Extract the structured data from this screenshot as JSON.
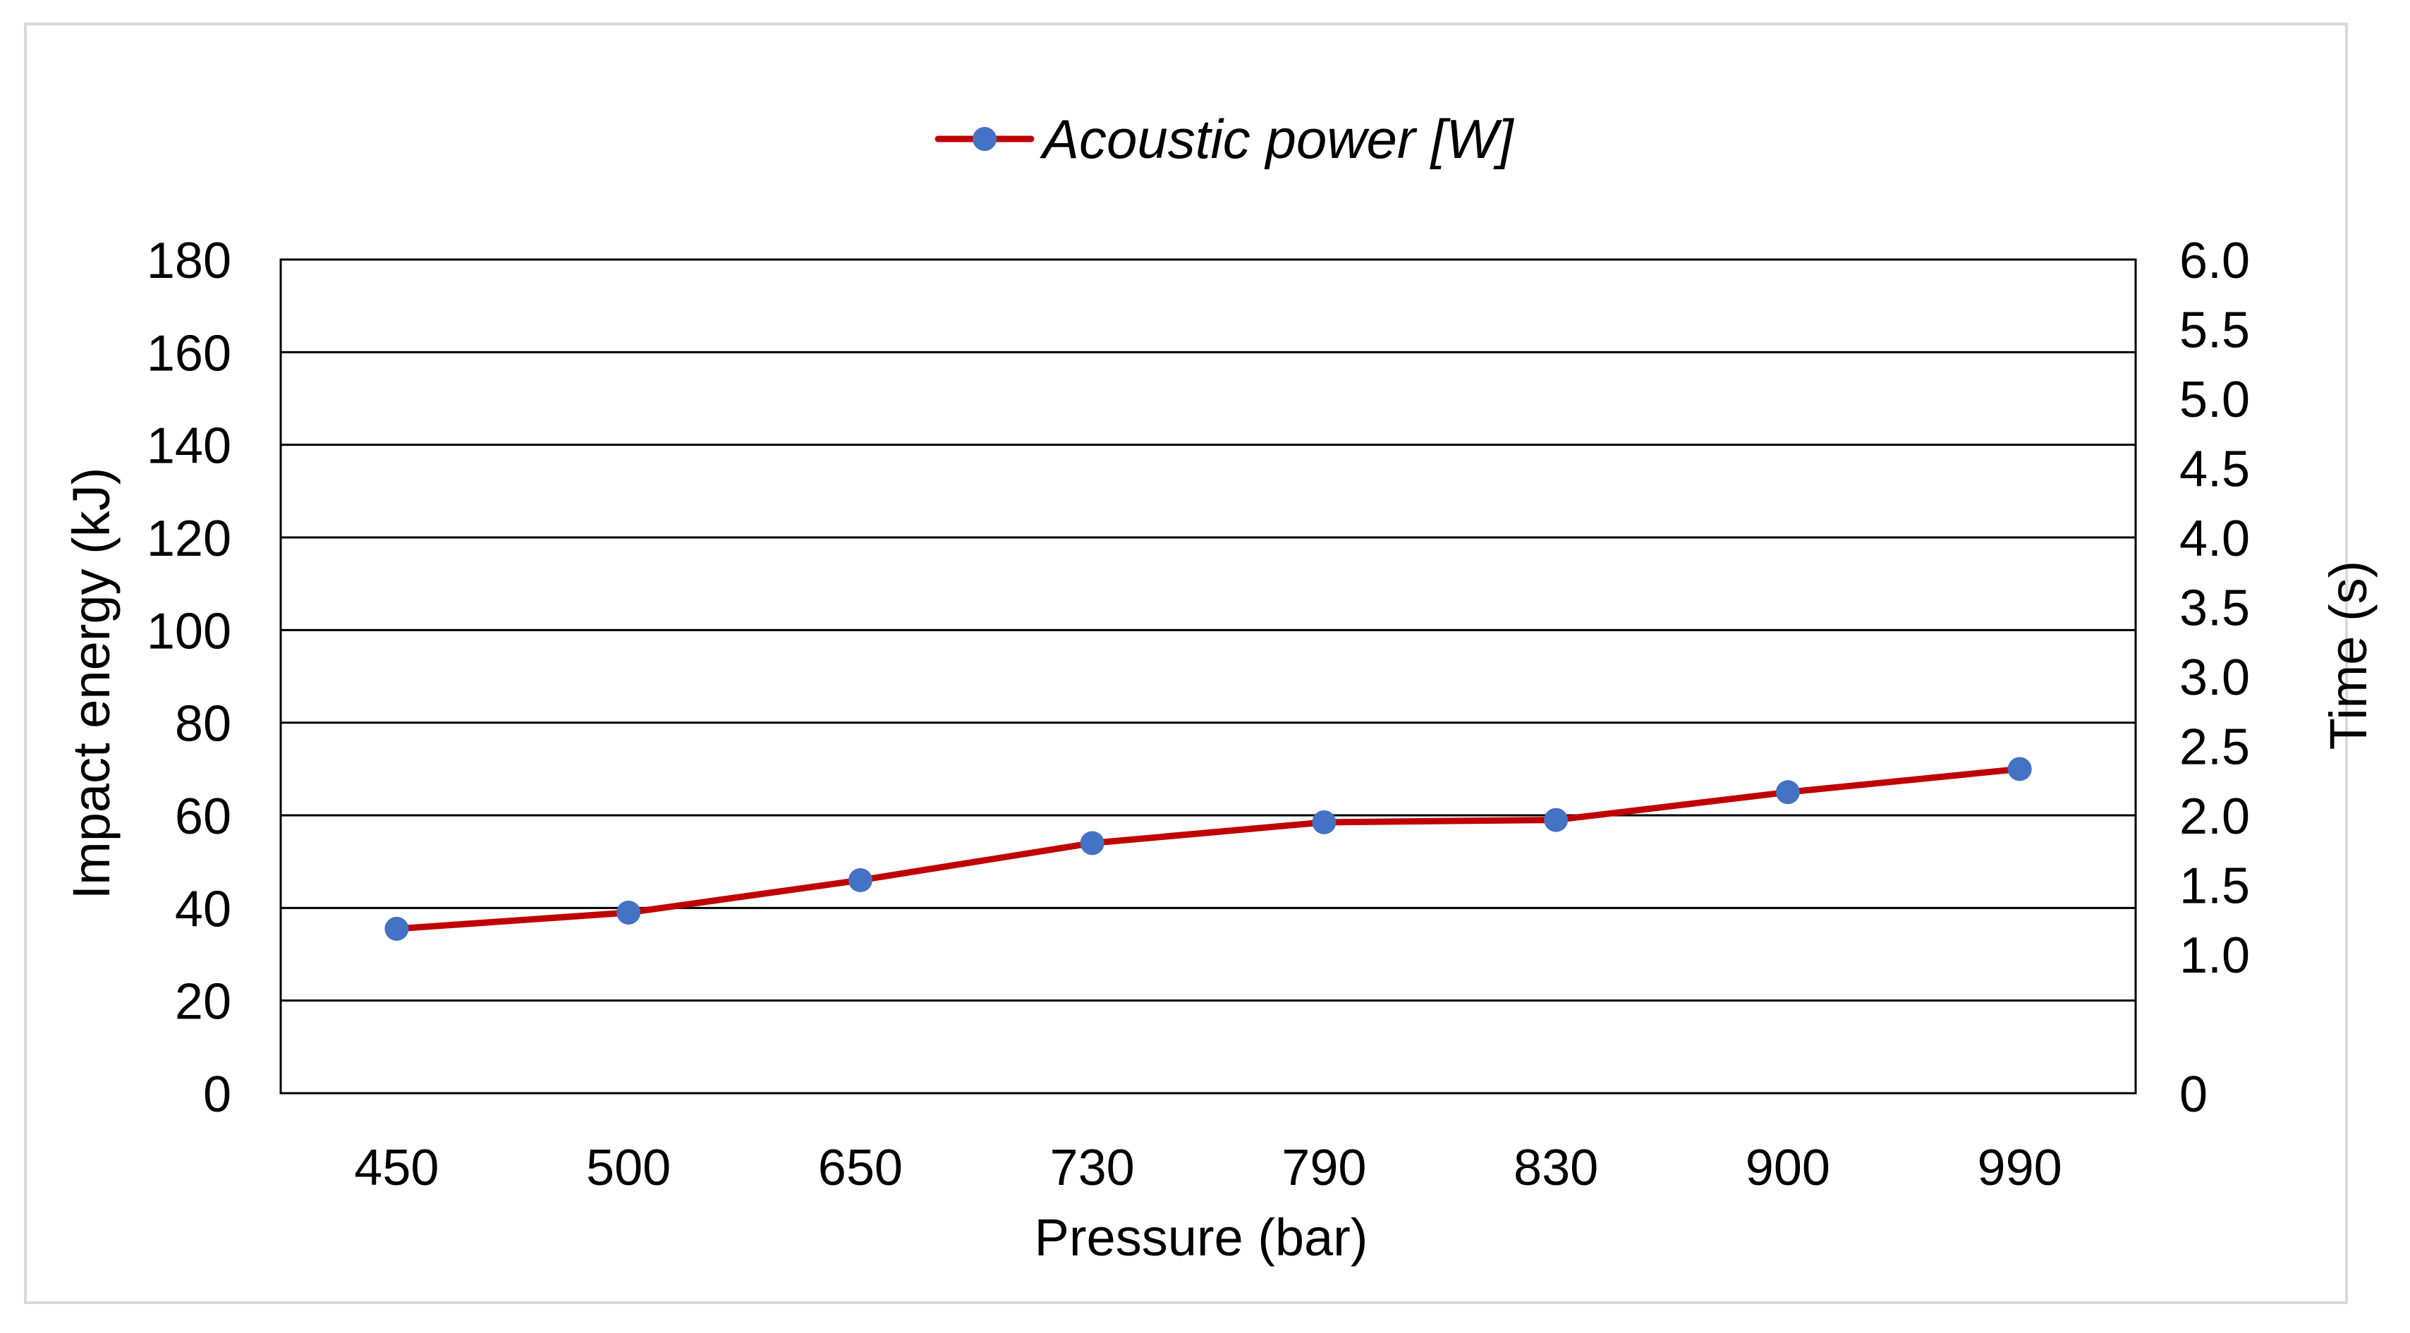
{
  "chart_data": {
    "type": "line",
    "title": "",
    "categories": [
      "450",
      "500",
      "650",
      "730",
      "790",
      "830",
      "900",
      "990"
    ],
    "series": [
      {
        "name": "Acoustic power [W]",
        "axis": "left",
        "values": [
          35.5,
          39,
          46,
          54,
          58.5,
          59,
          65,
          70
        ],
        "line_color": "#c00000",
        "marker_color": "#4472c4"
      }
    ],
    "xlabel": "Pressure (bar)",
    "ylabel": "Impact energy (kJ)",
    "y2label": "Time (s)",
    "ylim": [
      0,
      180
    ],
    "y_ticks": [
      "0",
      "20",
      "40",
      "60",
      "80",
      "100",
      "120",
      "140",
      "160",
      "180"
    ],
    "y2lim": [
      0,
      6.0
    ],
    "y2_ticks": [
      "0",
      "1.0",
      "1.5",
      "2.0",
      "2.5",
      "3.0",
      "3.5",
      "4.0",
      "4.5",
      "5.0",
      "5.5",
      "6.0"
    ],
    "grid": true,
    "legend_position": "top-center"
  }
}
